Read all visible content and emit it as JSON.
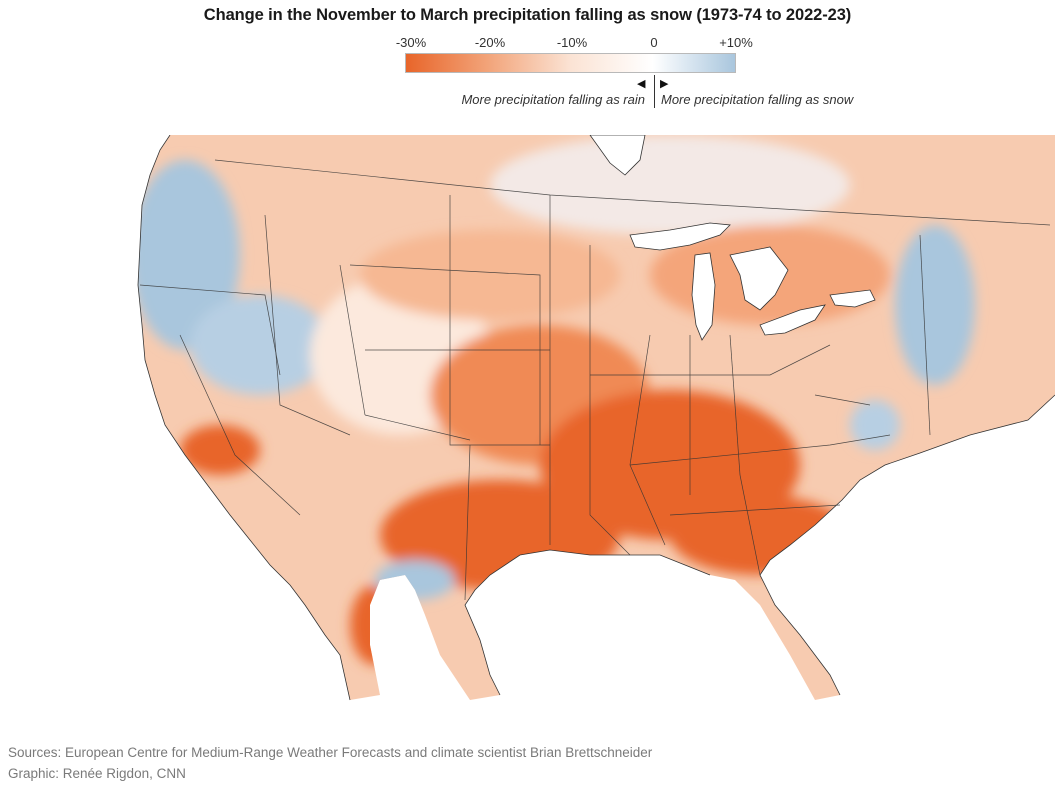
{
  "title": "Change in the November to March precipitation falling as snow (1973-74 to 2022-23)",
  "legend": {
    "ticks": [
      "-30%",
      "-20%",
      "-10%",
      "0",
      "+10%"
    ],
    "scale_colors": [
      "#e8652a",
      "#f2a47a",
      "#fbe3d4",
      "#ffffff",
      "#dce8f2",
      "#a9c6dd"
    ],
    "rain_arrow": "◀",
    "snow_arrow": "▶",
    "rain_note": "More precipitation falling as rain",
    "snow_note": "More precipitation falling as snow"
  },
  "map": {
    "colors": {
      "strong_rain": "#e8652a",
      "rain": "#f08a54",
      "light_rain": "#f6bc98",
      "neutral": "#fcefe6",
      "light_snow": "#d3e3ef",
      "snow": "#a9c6dd",
      "water": "#ffffff",
      "borders": "#333333"
    }
  },
  "footer": {
    "sources": "Sources: European Centre for Medium-Range Weather Forecasts and climate scientist Brian Brettschneider",
    "graphic": "Graphic: Renée Rigdon, CNN"
  }
}
